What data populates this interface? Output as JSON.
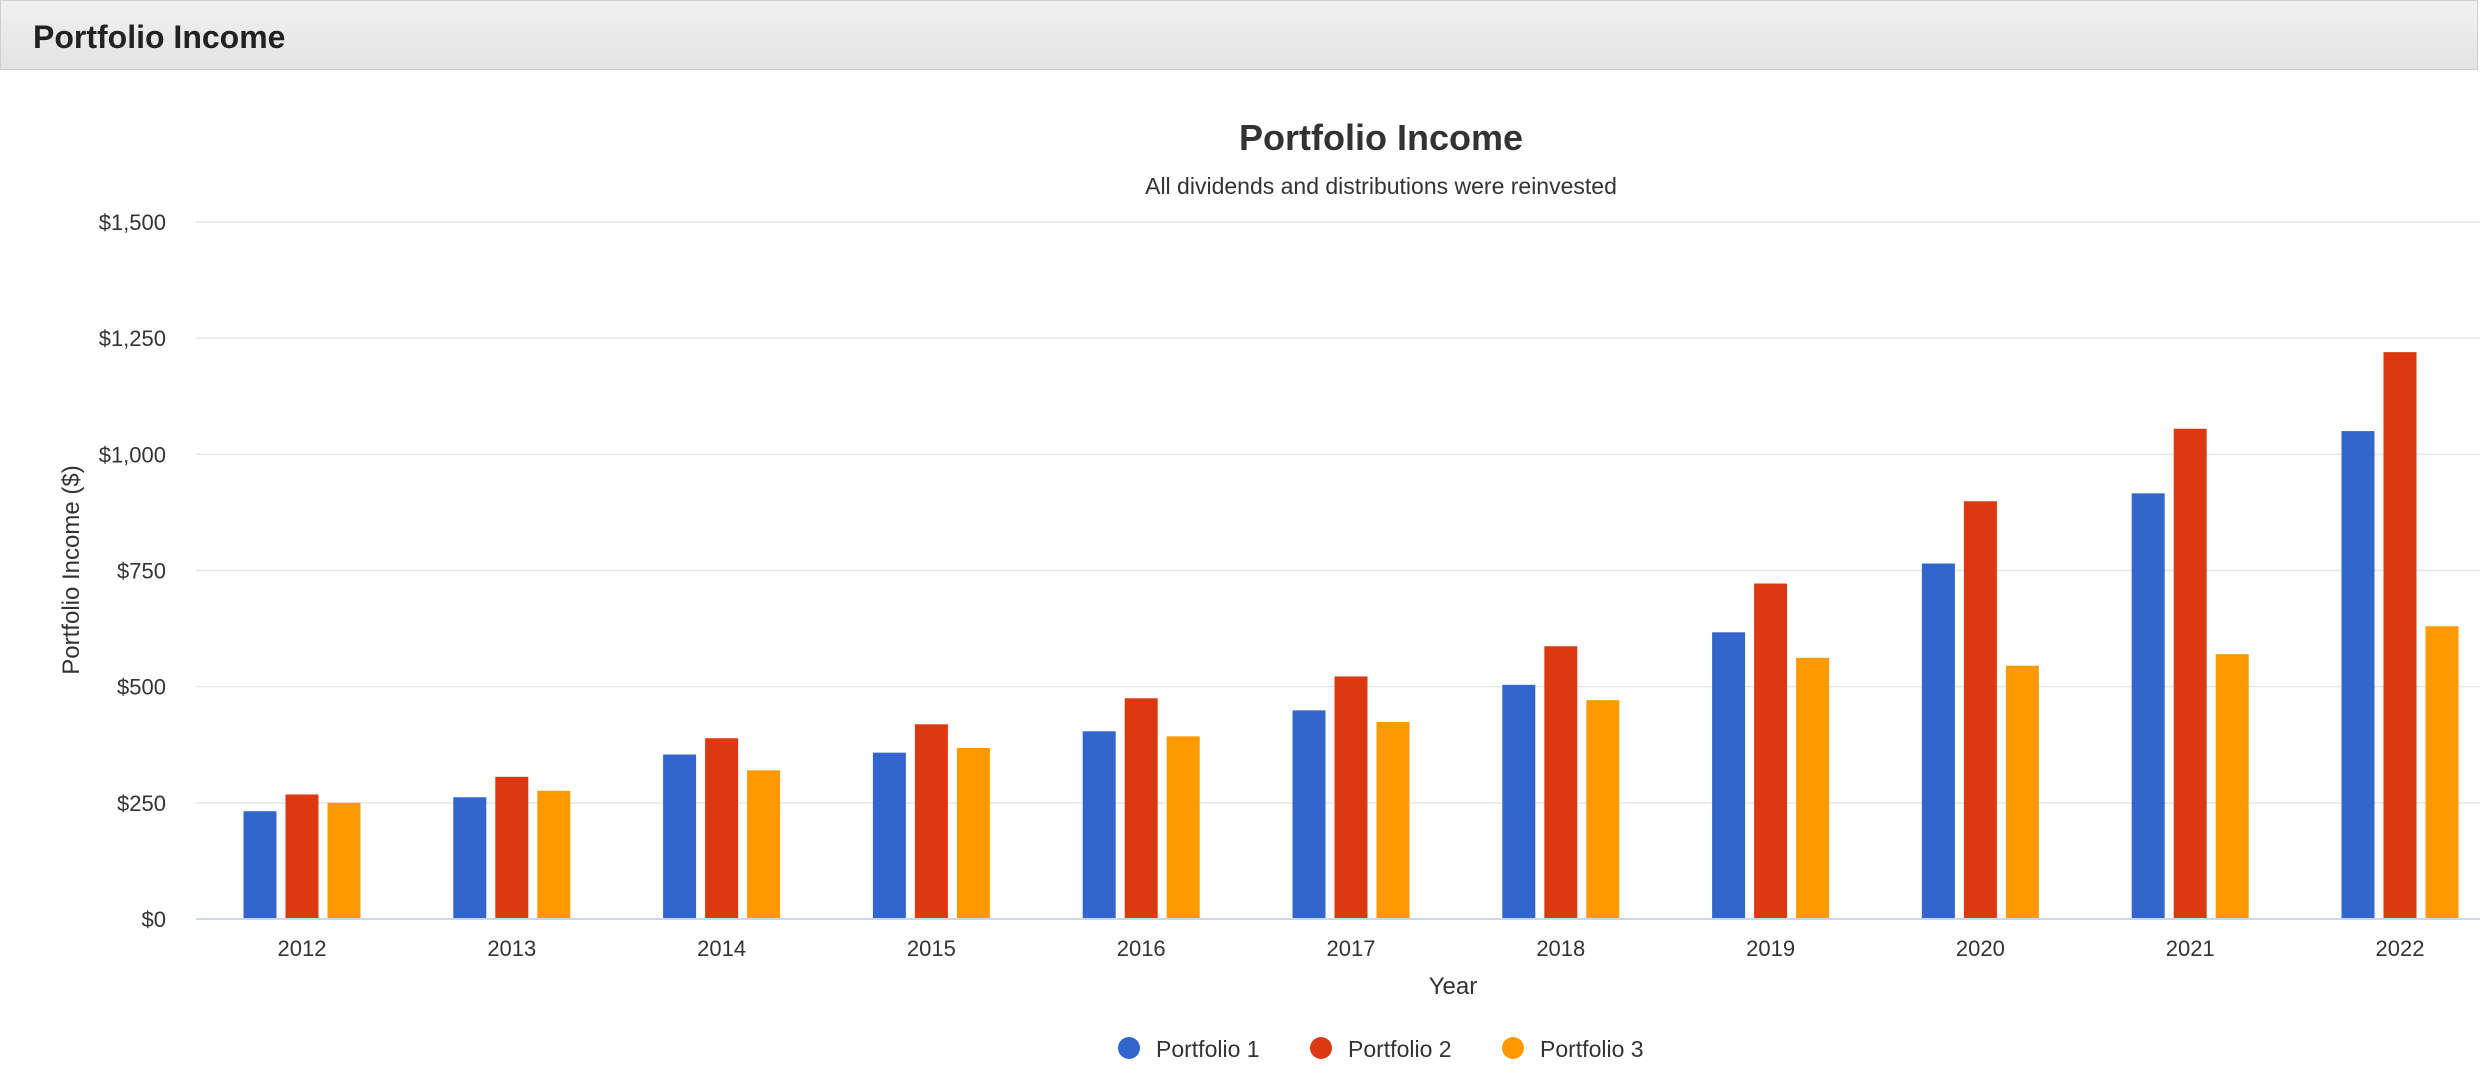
{
  "panel": {
    "title": "Portfolio Income"
  },
  "chart_data": {
    "type": "bar",
    "title": "Portfolio Income",
    "subtitle": "All dividends and distributions were reinvested",
    "xlabel": "Year",
    "ylabel": "Portfolio Income ($)",
    "ylim": [
      0,
      1500
    ],
    "yticks": [
      0,
      250,
      500,
      750,
      1000,
      1250,
      1500
    ],
    "ytick_labels": [
      "$0",
      "$250",
      "$500",
      "$750",
      "$1,000",
      "$1,250",
      "$1,500"
    ],
    "grid": true,
    "legend_position": "bottom-center",
    "categories": [
      "2012",
      "2013",
      "2014",
      "2015",
      "2016",
      "2017",
      "2018",
      "2019",
      "2020",
      "2021",
      "2022"
    ],
    "series": [
      {
        "name": "Portfolio 1",
        "color": "#3366cc",
        "values": [
          232,
          262,
          354,
          358,
          404,
          449,
          504,
          617,
          765,
          916,
          1050
        ]
      },
      {
        "name": "Portfolio 2",
        "color": "#dc3912",
        "values": [
          268,
          306,
          389,
          419,
          475,
          522,
          587,
          722,
          899,
          1055,
          1220
        ]
      },
      {
        "name": "Portfolio 3",
        "color": "#ff9900",
        "values": [
          250,
          276,
          320,
          368,
          393,
          424,
          471,
          562,
          545,
          570,
          630
        ]
      }
    ]
  }
}
